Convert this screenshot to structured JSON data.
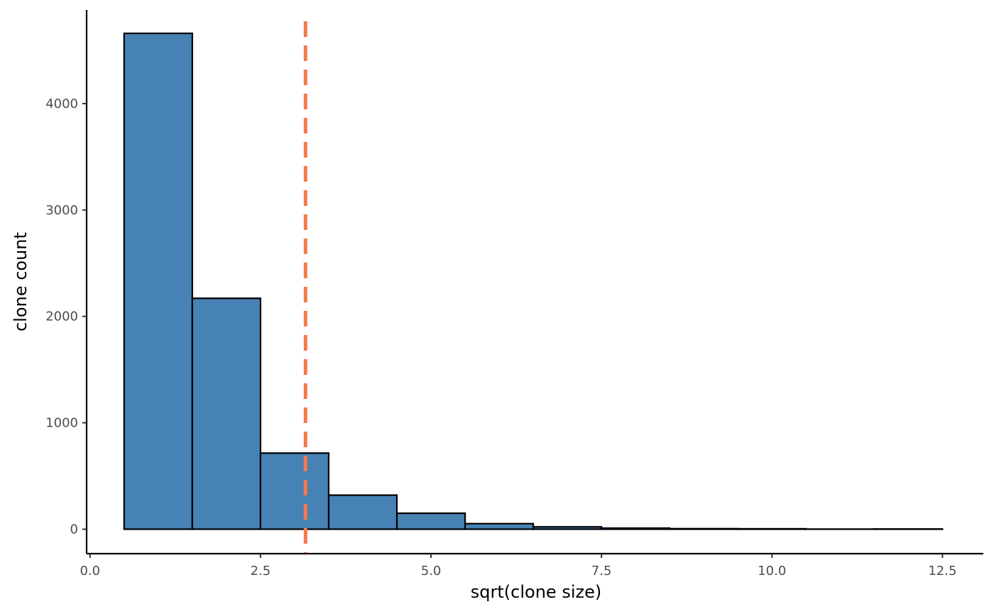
{
  "chart_data": {
    "type": "bar",
    "subtype": "histogram",
    "xlabel": "sqrt(clone size)",
    "ylabel": "clone count",
    "xlim": [
      -0.05,
      13.1
    ],
    "ylim": [
      -230,
      4880
    ],
    "x_ticks": [
      0.0,
      2.5,
      5.0,
      7.5,
      10.0,
      12.5
    ],
    "x_tick_labels": [
      "0.0",
      "2.5",
      "5.0",
      "7.5",
      "10.0",
      "12.5"
    ],
    "y_ticks": [
      0,
      1000,
      2000,
      3000,
      4000
    ],
    "y_tick_labels": [
      "0",
      "1000",
      "2000",
      "3000",
      "4000"
    ],
    "bins": [
      {
        "x0": 0.5,
        "x1": 1.5,
        "count": 4660
      },
      {
        "x0": 1.5,
        "x1": 2.5,
        "count": 2170
      },
      {
        "x0": 2.5,
        "x1": 3.5,
        "count": 715
      },
      {
        "x0": 3.5,
        "x1": 4.5,
        "count": 320
      },
      {
        "x0": 4.5,
        "x1": 5.5,
        "count": 150
      },
      {
        "x0": 5.5,
        "x1": 6.5,
        "count": 52
      },
      {
        "x0": 6.5,
        "x1": 7.5,
        "count": 22
      },
      {
        "x0": 7.5,
        "x1": 8.5,
        "count": 10
      },
      {
        "x0": 8.5,
        "x1": 9.5,
        "count": 5
      },
      {
        "x0": 9.5,
        "x1": 10.5,
        "count": 4
      },
      {
        "x0": 10.5,
        "x1": 11.5,
        "count": 1
      },
      {
        "x0": 11.5,
        "x1": 12.5,
        "count": 2
      }
    ],
    "reference_line": {
      "x": 3.16,
      "style": "dashed"
    },
    "bar_fill": "#4682b4",
    "bar_outline": "#000000",
    "reference_line_color": "#f4794d",
    "grid": false,
    "legend": "none"
  }
}
